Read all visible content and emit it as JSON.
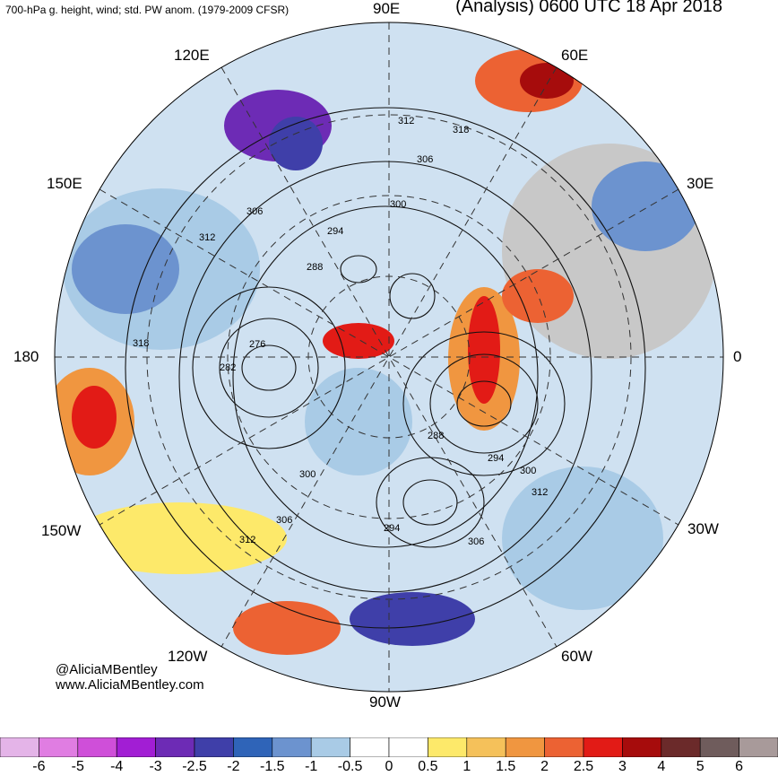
{
  "header": {
    "title_left": "700-hPa g. height, wind; std. PW anom. (1979-2009 CFSR)",
    "title_right": "(Analysis) 0600 UTC 18 Apr 2018"
  },
  "longitude_labels": {
    "e90": "90E",
    "e60": "60E",
    "e120": "120E",
    "e150": "150E",
    "e30": "30E",
    "w180": "180",
    "zero": "0",
    "w150": "150W",
    "w30": "30W",
    "w120": "120W",
    "w60": "60W",
    "w90": "90W"
  },
  "contour_labels": [
    "312",
    "318",
    "306",
    "300",
    "294",
    "288",
    "276",
    "282",
    "318",
    "306",
    "312",
    "288",
    "294",
    "300",
    "312",
    "306",
    "294",
    "300",
    "306",
    "312"
  ],
  "credits": {
    "twitter": "@AliciaMBentley",
    "website": "www.AliciaMBentley.com"
  },
  "colorbar": {
    "ticks": [
      "-6",
      "-5",
      "-4",
      "-3",
      "-2.5",
      "-2",
      "-1.5",
      "-1",
      "-0.5",
      "0",
      "0.5",
      "1",
      "1.5",
      "2",
      "2.5",
      "3",
      "4",
      "5",
      "6"
    ],
    "colors": [
      "#e4b4e8",
      "#e07de2",
      "#cf4fd9",
      "#a21ed4",
      "#6d2bb5",
      "#3f3fa9",
      "#2f64b8",
      "#6c93cf",
      "#a9cbe6",
      "#ffffff",
      "#ffffff",
      "#fde96a",
      "#f5c15a",
      "#f09640",
      "#ec6233",
      "#e21b16",
      "#a60c0c",
      "#6b2a2a",
      "#6f5c5c",
      "#a89a9a"
    ]
  }
}
